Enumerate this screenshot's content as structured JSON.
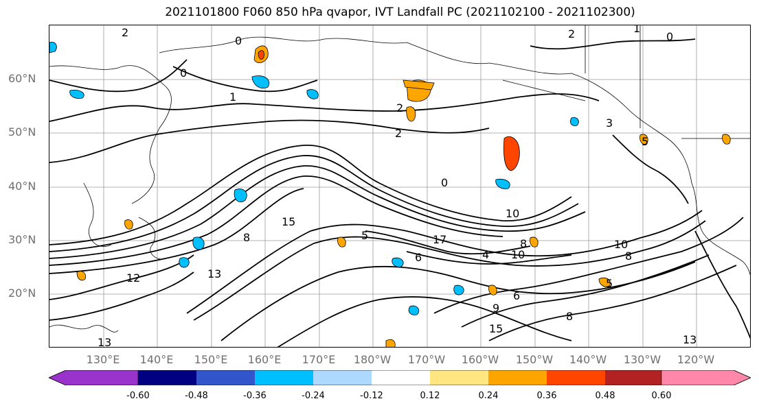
{
  "title": "2021101800 F060 850 hPa qvapor, IVT Landfall PC (2021102100 - 2021102300)",
  "latitude_labels": [
    "60°N",
    "50°N",
    "40°N",
    "30°N",
    "20°N"
  ],
  "longitude_labels": [
    "130°E",
    "140°E",
    "150°E",
    "160°E",
    "170°E",
    "180°W",
    "170°W",
    "160°W",
    "150°W",
    "140°W",
    "130°W",
    "120°W"
  ],
  "contour_labels": [
    "2",
    "0",
    "0",
    "1",
    "2",
    "2",
    "2",
    "0",
    "1",
    "0",
    "5",
    "3",
    "10",
    "15",
    "10",
    "8",
    "5",
    "17",
    "4",
    "10",
    "8",
    "15",
    "13",
    "12",
    "13",
    "13",
    "9",
    "6",
    "8",
    "5",
    "8",
    "6"
  ],
  "colorbar": {
    "colors": [
      "#9933cc",
      "#000080",
      "#3355cc",
      "#00bfff",
      "#add8ff",
      "#ffffff",
      "#ffe680",
      "#ffa500",
      "#ff4500",
      "#b22222",
      "#ff88aa"
    ],
    "tick_labels": [
      "-0.60",
      "-0.48",
      "-0.36",
      "-0.24",
      "-0.12",
      "0.12",
      "0.24",
      "0.36",
      "0.48",
      "0.60"
    ]
  },
  "shaded_anomaly_colors": {
    "negative": "#00bfff",
    "positive": "#ffa500",
    "strong_positive": "#ff4500"
  }
}
